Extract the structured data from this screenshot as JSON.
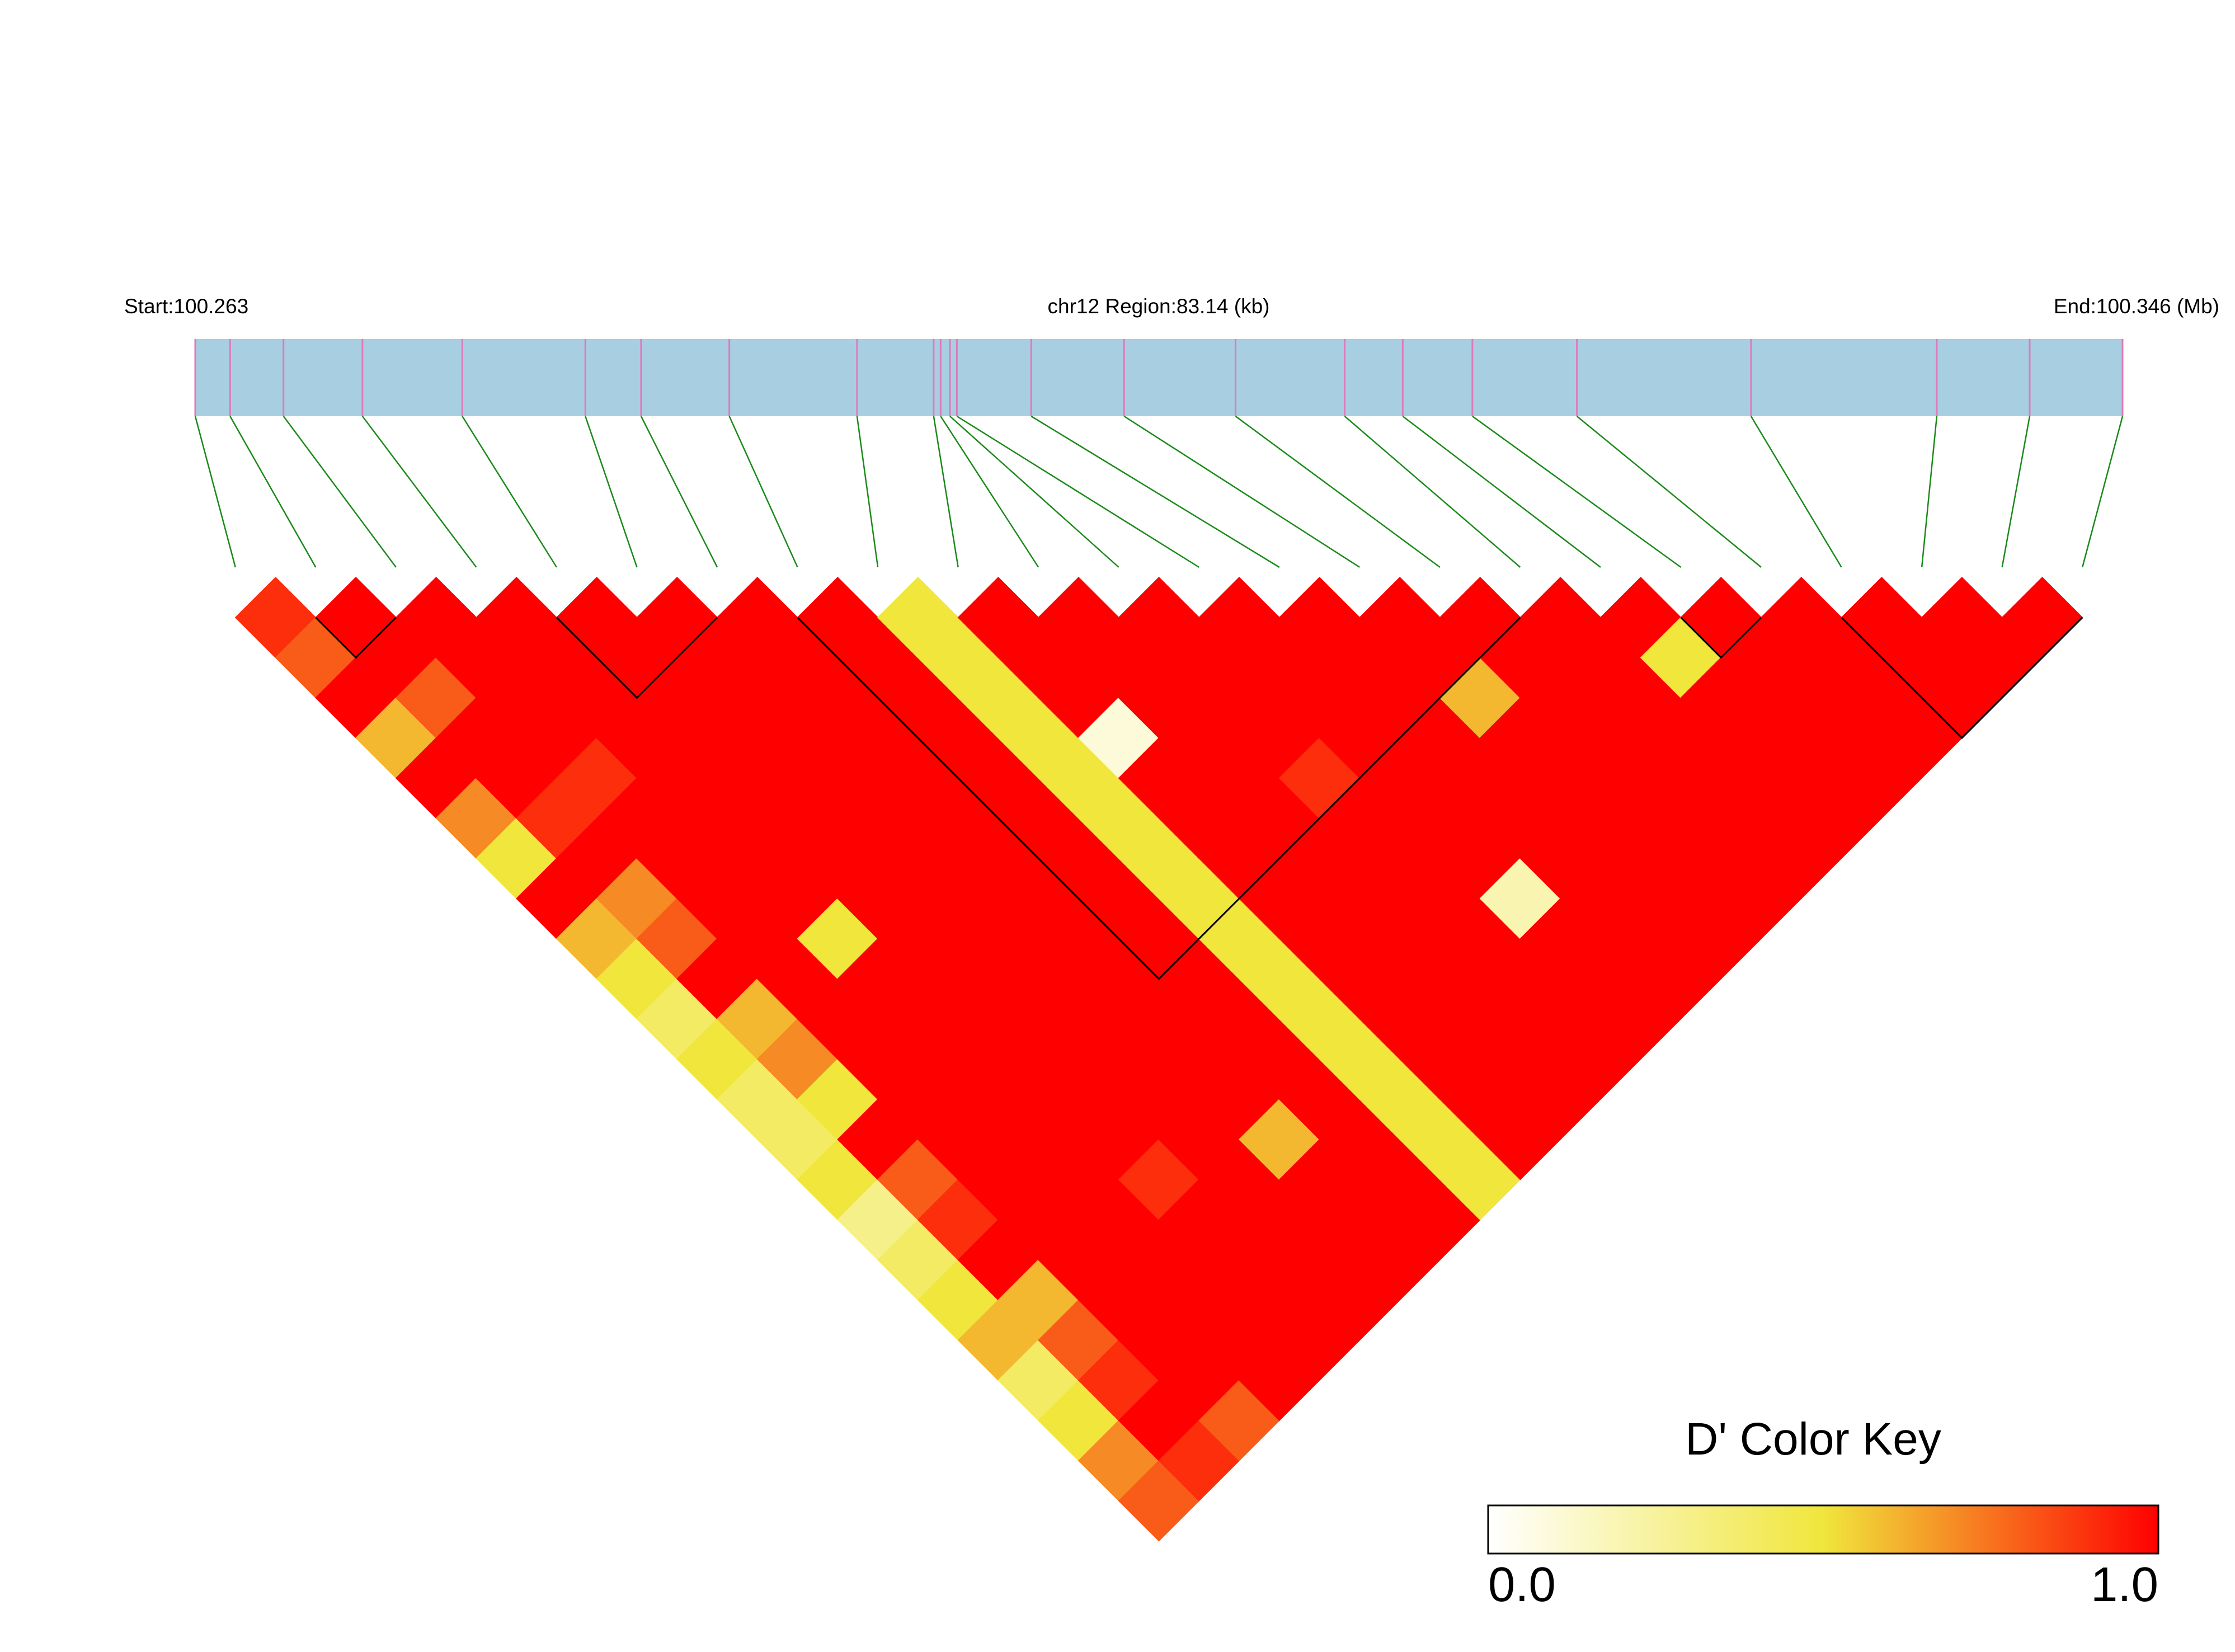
{
  "chart_data": {
    "type": "ld-heatmap",
    "start_label": "Start:100.263",
    "region_label": "chr12 Region:83.14 (kb)",
    "end_label": "End:100.346 (Mb)",
    "xlim": [
      100.263,
      100.346
    ],
    "x": [
      100.263,
      100.2645,
      100.2668,
      100.2702,
      100.2745,
      100.2798,
      100.2822,
      100.286,
      100.2915,
      100.2948,
      100.2951,
      100.2955,
      100.2958,
      100.299,
      100.303,
      100.3078,
      100.3125,
      100.315,
      100.318,
      100.3225,
      100.33,
      100.338,
      100.342,
      100.346
    ],
    "dprime": [
      [
        0.9,
        0.8,
        1,
        0.6,
        1,
        0.7,
        0.5,
        1,
        0.6,
        0.5,
        0.4,
        0.5,
        0.4,
        0.4,
        0.5,
        0.3,
        0.4,
        0.5,
        0.6,
        0.4,
        0.5,
        0.7,
        0.8
      ],
      [
        1,
        1,
        0.8,
        1,
        1,
        0.9,
        1,
        0.7,
        0.8,
        1,
        0.6,
        0.7,
        0.5,
        1,
        0.8,
        0.9,
        1,
        0.6,
        0.8,
        0.9,
        1,
        0.9
      ],
      [
        1,
        1,
        1,
        1,
        0.9,
        1,
        1,
        1,
        1,
        1,
        1,
        1,
        1,
        1,
        1,
        1,
        1,
        1,
        1,
        1,
        0.8
      ],
      [
        1,
        1,
        1,
        1,
        1,
        1,
        1,
        1,
        0.5,
        1,
        1,
        1,
        1,
        1,
        1,
        1,
        1,
        1,
        1,
        1
      ],
      [
        1,
        1,
        1,
        1,
        1,
        1,
        1,
        1,
        1,
        1,
        1,
        1,
        1,
        1,
        0.9,
        1,
        1,
        1,
        1
      ],
      [
        1,
        1,
        1,
        1,
        1,
        1,
        1,
        1,
        1,
        1,
        1,
        1,
        1,
        1,
        1,
        1,
        1,
        1
      ],
      [
        1,
        1,
        1,
        1,
        1,
        1,
        1,
        1,
        1,
        1,
        1,
        1,
        1,
        0.6,
        1,
        1,
        1
      ],
      [
        1,
        1,
        1,
        1,
        1,
        1,
        1,
        1,
        1,
        1,
        1,
        1,
        1,
        1,
        1,
        1
      ],
      [
        0.5,
        0.5,
        0.5,
        0.5,
        0.5,
        0.5,
        0.5,
        0.5,
        0.5,
        0.5,
        0.5,
        0.5,
        0.5,
        0.5,
        0.5
      ],
      [
        1,
        1,
        1,
        0.1,
        1,
        1,
        1,
        1,
        1,
        1,
        1,
        1,
        1,
        1
      ],
      [
        1,
        1,
        1,
        1,
        1,
        1,
        1,
        1,
        1,
        1,
        1,
        1,
        1
      ],
      [
        1,
        1,
        1,
        1,
        0.9,
        1,
        1,
        1,
        1,
        1,
        1,
        1
      ],
      [
        1,
        1,
        1,
        1,
        1,
        1,
        1,
        0.2,
        1,
        1,
        1
      ],
      [
        1,
        1,
        1,
        1,
        1,
        1,
        1,
        1,
        1,
        1
      ],
      [
        1,
        1,
        0.6,
        1,
        1,
        1,
        1,
        1,
        1
      ],
      [
        1,
        1,
        1,
        1,
        1,
        1,
        1,
        1
      ],
      [
        1,
        1,
        1,
        1,
        1,
        1,
        1
      ],
      [
        1,
        0.5,
        1,
        1,
        1,
        1
      ],
      [
        1,
        1,
        1,
        1,
        1
      ],
      [
        1,
        1,
        1,
        1
      ],
      [
        1,
        1,
        1
      ],
      [
        1,
        1
      ],
      [
        1
      ]
    ],
    "blocks": [
      [
        1,
        2
      ],
      [
        4,
        6
      ],
      [
        7,
        16
      ],
      [
        18,
        19
      ],
      [
        20,
        23
      ]
    ],
    "key": {
      "title": "D' Color Key",
      "lim": [
        0,
        1
      ],
      "ticks": [
        {
          "value": 0,
          "label": "0.0"
        },
        {
          "value": 1,
          "label": "1.0"
        }
      ]
    }
  }
}
